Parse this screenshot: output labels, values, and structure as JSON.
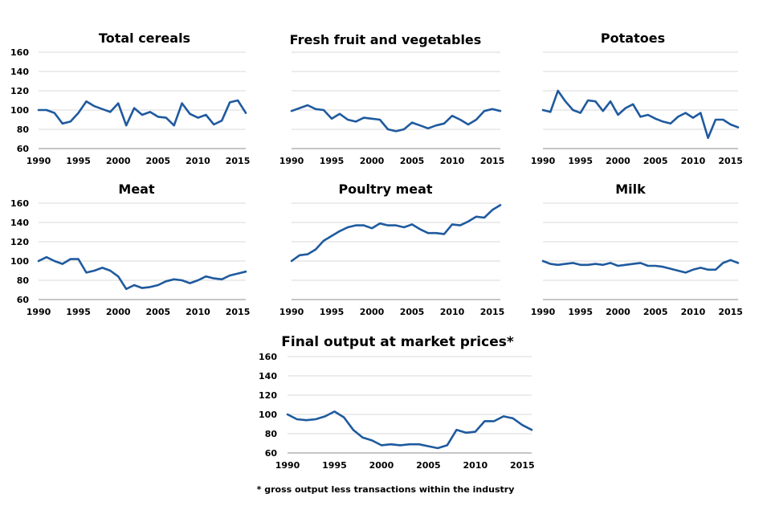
{
  "footnote": "* gross output less transactions within the industry",
  "chart_data": [
    {
      "type": "line",
      "title": "Total cereals",
      "x": [
        1990,
        1991,
        1992,
        1993,
        1994,
        1995,
        1996,
        1997,
        1998,
        1999,
        2000,
        2001,
        2002,
        2003,
        2004,
        2005,
        2006,
        2007,
        2008,
        2009,
        2010,
        2011,
        2012,
        2013,
        2014,
        2015,
        2016
      ],
      "series": [
        {
          "values": [
            100,
            100,
            97,
            86,
            88,
            97,
            109,
            104,
            101,
            98,
            107,
            84,
            102,
            95,
            98,
            93,
            92,
            84,
            107,
            96,
            92,
            95,
            85,
            89,
            108,
            110,
            97
          ]
        }
      ],
      "ylim": [
        60,
        160
      ],
      "yticks": [
        60,
        80,
        100,
        120,
        140,
        160
      ],
      "xticks": [
        1990,
        1995,
        2000,
        2005,
        2010,
        2015
      ],
      "grid": true,
      "color": "#1f5a9e"
    },
    {
      "type": "line",
      "title": "Fresh fruit and vegetables",
      "x": [
        1990,
        1991,
        1992,
        1993,
        1994,
        1995,
        1996,
        1997,
        1998,
        1999,
        2000,
        2001,
        2002,
        2003,
        2004,
        2005,
        2006,
        2007,
        2008,
        2009,
        2010,
        2011,
        2012,
        2013,
        2014,
        2015,
        2016
      ],
      "series": [
        {
          "values": [
            99,
            102,
            105,
            101,
            100,
            91,
            96,
            90,
            88,
            92,
            91,
            90,
            80,
            78,
            80,
            87,
            84,
            81,
            84,
            86,
            94,
            90,
            85,
            90,
            99,
            101,
            99
          ]
        }
      ],
      "ylim": [
        60,
        160
      ],
      "yticks": [
        60,
        80,
        100,
        120,
        140,
        160
      ],
      "xticks": [
        1990,
        1995,
        2000,
        2005,
        2010,
        2015
      ],
      "grid": true,
      "color": "#1f5a9e"
    },
    {
      "type": "line",
      "title": "Potatoes",
      "x": [
        1990,
        1991,
        1992,
        1993,
        1994,
        1995,
        1996,
        1997,
        1998,
        1999,
        2000,
        2001,
        2002,
        2003,
        2004,
        2005,
        2006,
        2007,
        2008,
        2009,
        2010,
        2011,
        2012,
        2013,
        2014,
        2015,
        2016
      ],
      "series": [
        {
          "values": [
            100,
            98,
            120,
            109,
            100,
            97,
            110,
            109,
            99,
            109,
            95,
            102,
            106,
            93,
            95,
            91,
            88,
            86,
            93,
            97,
            92,
            97,
            71,
            90,
            90,
            85,
            82
          ]
        }
      ],
      "ylim": [
        60,
        160
      ],
      "yticks": [
        60,
        80,
        100,
        120,
        140,
        160
      ],
      "xticks": [
        1990,
        1995,
        2000,
        2005,
        2010,
        2015
      ],
      "grid": true,
      "color": "#1f5a9e"
    },
    {
      "type": "line",
      "title": "Meat",
      "x": [
        1990,
        1991,
        1992,
        1993,
        1994,
        1995,
        1996,
        1997,
        1998,
        1999,
        2000,
        2001,
        2002,
        2003,
        2004,
        2005,
        2006,
        2007,
        2008,
        2009,
        2010,
        2011,
        2012,
        2013,
        2014,
        2015,
        2016
      ],
      "series": [
        {
          "values": [
            100,
            104,
            100,
            97,
            102,
            102,
            88,
            90,
            93,
            90,
            84,
            71,
            75,
            72,
            73,
            75,
            79,
            81,
            80,
            77,
            80,
            84,
            82,
            81,
            85,
            87,
            89
          ]
        }
      ],
      "ylim": [
        60,
        160
      ],
      "yticks": [
        60,
        80,
        100,
        120,
        140,
        160
      ],
      "xticks": [
        1990,
        1995,
        2000,
        2005,
        2010,
        2015
      ],
      "grid": true,
      "color": "#1f5a9e"
    },
    {
      "type": "line",
      "title": "Poultry meat",
      "x": [
        1990,
        1991,
        1992,
        1993,
        1994,
        1995,
        1996,
        1997,
        1998,
        1999,
        2000,
        2001,
        2002,
        2003,
        2004,
        2005,
        2006,
        2007,
        2008,
        2009,
        2010,
        2011,
        2012,
        2013,
        2014,
        2015,
        2016
      ],
      "series": [
        {
          "values": [
            100,
            106,
            107,
            112,
            121,
            126,
            131,
            135,
            137,
            137,
            134,
            139,
            137,
            137,
            135,
            138,
            133,
            129,
            129,
            128,
            138,
            137,
            141,
            146,
            145,
            153,
            158
          ]
        }
      ],
      "ylim": [
        60,
        160
      ],
      "yticks": [
        60,
        80,
        100,
        120,
        140,
        160
      ],
      "xticks": [
        1990,
        1995,
        2000,
        2005,
        2010,
        2015
      ],
      "grid": true,
      "color": "#1f5a9e"
    },
    {
      "type": "line",
      "title": "Milk",
      "x": [
        1990,
        1991,
        1992,
        1993,
        1994,
        1995,
        1996,
        1997,
        1998,
        1999,
        2000,
        2001,
        2002,
        2003,
        2004,
        2005,
        2006,
        2007,
        2008,
        2009,
        2010,
        2011,
        2012,
        2013,
        2014,
        2015,
        2016
      ],
      "series": [
        {
          "values": [
            100,
            97,
            96,
            97,
            98,
            96,
            96,
            97,
            96,
            98,
            95,
            96,
            97,
            98,
            95,
            95,
            94,
            92,
            90,
            88,
            91,
            93,
            91,
            91,
            98,
            101,
            98
          ]
        }
      ],
      "ylim": [
        60,
        160
      ],
      "yticks": [
        60,
        80,
        100,
        120,
        140,
        160
      ],
      "xticks": [
        1990,
        1995,
        2000,
        2005,
        2010,
        2015
      ],
      "grid": true,
      "color": "#1f5a9e"
    },
    {
      "type": "line",
      "title": "Final output at market prices*",
      "x": [
        1990,
        1991,
        1992,
        1993,
        1994,
        1995,
        1996,
        1997,
        1998,
        1999,
        2000,
        2001,
        2002,
        2003,
        2004,
        2005,
        2006,
        2007,
        2008,
        2009,
        2010,
        2011,
        2012,
        2013,
        2014,
        2015,
        2016
      ],
      "series": [
        {
          "values": [
            100,
            95,
            94,
            95,
            98,
            103,
            97,
            84,
            76,
            73,
            68,
            69,
            68,
            69,
            69,
            67,
            65,
            68,
            84,
            81,
            82,
            93,
            93,
            98,
            96,
            89,
            84
          ]
        }
      ],
      "ylim": [
        60,
        160
      ],
      "yticks": [
        60,
        80,
        100,
        120,
        140,
        160
      ],
      "xticks": [
        1990,
        1995,
        2000,
        2005,
        2010,
        2015
      ],
      "grid": true,
      "color": "#1f5a9e"
    }
  ]
}
